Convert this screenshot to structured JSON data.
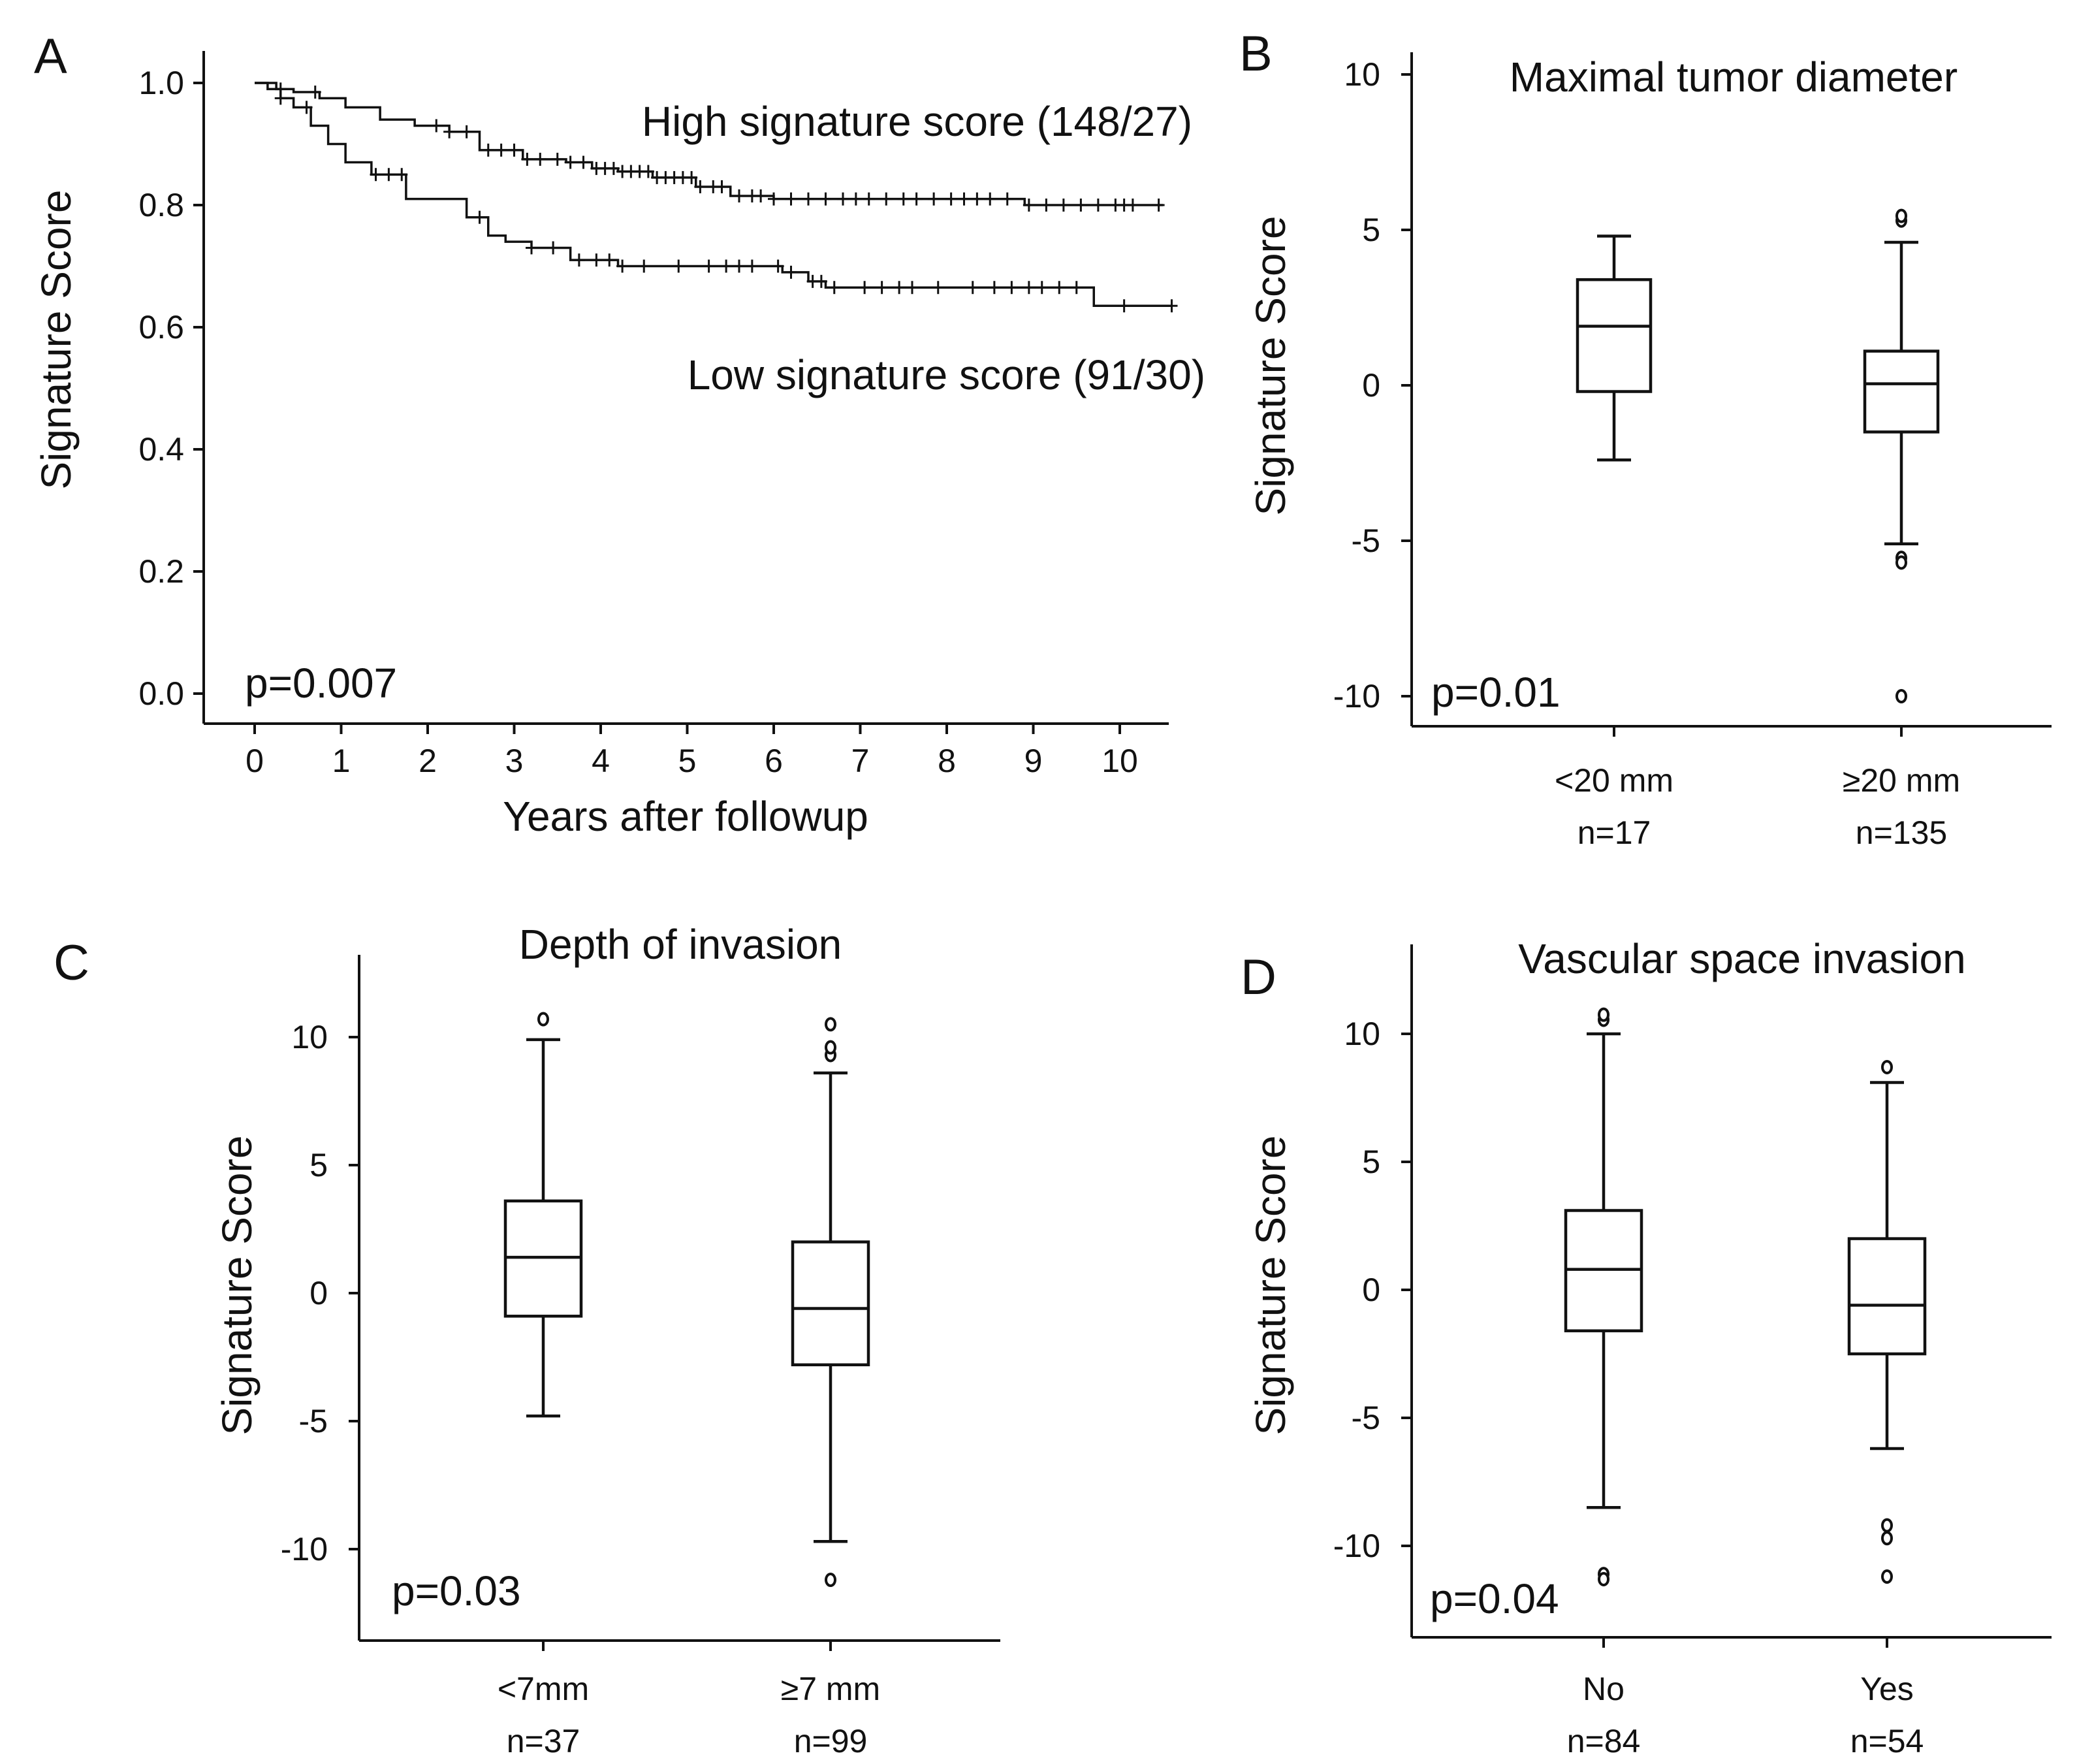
{
  "chart_data": [
    {
      "panel": "A",
      "type": "line",
      "title": "",
      "xlabel": "Years after followup",
      "ylabel": "Signature Score",
      "xlim": [
        0,
        10.6
      ],
      "ylim": [
        0.0,
        1.0
      ],
      "xticks": [
        "0",
        "1",
        "2",
        "3",
        "4",
        "5",
        "6",
        "7",
        "8",
        "9",
        "10"
      ],
      "yticks": [
        "0.0",
        "0.2",
        "0.4",
        "0.6",
        "0.8",
        "1.0"
      ],
      "p_value": "p=0.007",
      "series": [
        {
          "name": "High signature score (148/27)",
          "step_x": [
            0,
            0.25,
            0.45,
            0.75,
            1.05,
            1.45,
            1.85,
            2.25,
            2.6,
            3.1,
            3.6,
            3.9,
            4.2,
            4.6,
            5.1,
            5.5,
            6.0,
            7.5,
            8.5,
            8.9,
            9.4,
            10.5
          ],
          "step_y": [
            1.0,
            0.99,
            0.985,
            0.975,
            0.96,
            0.94,
            0.93,
            0.92,
            0.89,
            0.875,
            0.87,
            0.86,
            0.855,
            0.845,
            0.83,
            0.815,
            0.81,
            0.81,
            0.81,
            0.8,
            0.8,
            0.8
          ],
          "censor_x": [
            0.3,
            0.7,
            2.1,
            2.25,
            2.45,
            2.7,
            2.85,
            3.0,
            3.15,
            3.3,
            3.5,
            3.65,
            3.8,
            3.95,
            4.05,
            4.15,
            4.25,
            4.35,
            4.45,
            4.55,
            4.65,
            4.75,
            4.85,
            4.95,
            5.05,
            5.15,
            5.3,
            5.4,
            5.6,
            5.75,
            5.85,
            6.0,
            6.2,
            6.4,
            6.6,
            6.8,
            6.95,
            7.1,
            7.3,
            7.5,
            7.65,
            7.85,
            8.05,
            8.2,
            8.35,
            8.5,
            8.7,
            8.95,
            9.15,
            9.35,
            9.55,
            9.75,
            9.95,
            10.05,
            10.15,
            10.45
          ]
        },
        {
          "name": "Low signature score (91/30)",
          "step_x": [
            0,
            0.15,
            0.3,
            0.45,
            0.65,
            0.85,
            1.05,
            1.35,
            1.75,
            2.45,
            2.7,
            2.9,
            3.2,
            3.65,
            4.2,
            4.8,
            5.4,
            6.1,
            6.4,
            6.6,
            9.7,
            10.6
          ],
          "step_y": [
            1.0,
            0.99,
            0.975,
            0.96,
            0.93,
            0.9,
            0.87,
            0.85,
            0.81,
            0.78,
            0.75,
            0.74,
            0.73,
            0.71,
            0.7,
            0.7,
            0.7,
            0.69,
            0.675,
            0.665,
            0.635,
            0.635
          ],
          "censor_x": [
            0.3,
            0.6,
            1.4,
            1.55,
            1.7,
            2.6,
            3.2,
            3.45,
            3.75,
            3.95,
            4.1,
            4.25,
            4.5,
            4.9,
            5.25,
            5.45,
            5.6,
            5.75,
            6.05,
            6.2,
            6.45,
            6.55,
            6.7,
            7.05,
            7.25,
            7.45,
            7.6,
            7.9,
            8.3,
            8.55,
            8.75,
            8.95,
            9.1,
            9.3,
            9.5,
            10.05,
            10.6
          ]
        }
      ]
    },
    {
      "panel": "B",
      "type": "box",
      "title": "Maximal tumor diameter",
      "ylabel": "Signature Score",
      "ylim": [
        -11,
        11
      ],
      "yticks": [
        "-10",
        "-5",
        "0",
        "5",
        "10"
      ],
      "p_value": "p=0.01",
      "groups": [
        {
          "label": "<20 mm",
          "n": "n=17",
          "whisker_low": -2.4,
          "q1": -0.2,
          "median": 1.9,
          "q3": 3.4,
          "whisker_high": 4.8,
          "outliers": []
        },
        {
          "label": "≥20 mm",
          "n": "n=135",
          "whisker_low": -5.1,
          "q1": -1.5,
          "median": 0.05,
          "q3": 1.1,
          "whisker_high": 4.6,
          "outliers": [
            5.3,
            5.45,
            -5.55,
            -5.7,
            -10.0
          ]
        }
      ]
    },
    {
      "panel": "C",
      "type": "box",
      "title": "Depth of invasion",
      "ylabel": "Signature Score",
      "ylim": [
        -13,
        13
      ],
      "yticks": [
        "-10",
        "-5",
        "0",
        "5",
        "10"
      ],
      "p_value": "p=0.03",
      "groups": [
        {
          "label": "<7mm",
          "n": "n=37",
          "whisker_low": -4.8,
          "q1": -0.9,
          "median": 1.4,
          "q3": 3.6,
          "whisker_high": 9.9,
          "outliers": [
            10.7
          ]
        },
        {
          "label": "≥7 mm",
          "n": "n=99",
          "whisker_low": -9.7,
          "q1": -2.8,
          "median": -0.6,
          "q3": 2.0,
          "whisker_high": 8.6,
          "outliers": [
            9.3,
            9.6,
            10.5,
            -11.2
          ]
        }
      ]
    },
    {
      "panel": "D",
      "type": "box",
      "title": "Vascular space invasion",
      "ylabel": "Signature Score",
      "ylim": [
        -13,
        13
      ],
      "yticks": [
        "-10",
        "-5",
        "0",
        "5",
        "10"
      ],
      "p_value": "p=0.04",
      "groups": [
        {
          "label": "No",
          "n": "n=84",
          "whisker_low": -8.5,
          "q1": -1.6,
          "median": 0.8,
          "q3": 3.1,
          "whisker_high": 10.0,
          "outliers": [
            10.55,
            10.75,
            -11.1,
            -11.3
          ]
        },
        {
          "label": "Yes",
          "n": "n=54",
          "whisker_low": -6.2,
          "q1": -2.5,
          "median": -0.6,
          "q3": 2.0,
          "whisker_high": 8.1,
          "outliers": [
            8.7,
            -9.2,
            -9.7,
            -11.2
          ]
        }
      ]
    }
  ]
}
